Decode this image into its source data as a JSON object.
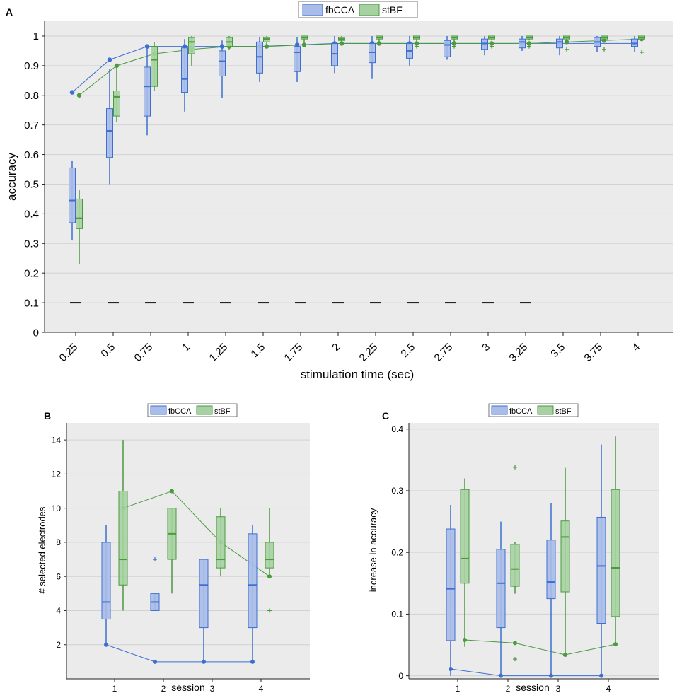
{
  "colors": {
    "fbCCA_fill": "#a9bde8",
    "fbCCA_edge": "#3d6fd0",
    "stBF_fill": "#a7d1a2",
    "stBF_edge": "#4a9a3e",
    "panel_bg": "#ebebeb",
    "grid": "#d2d2d2",
    "chance": "#111111"
  },
  "chart_data": [
    {
      "panel_label": "A",
      "type": "box",
      "xlabel": "stimulation time (sec)",
      "ylabel": "accuracy",
      "ylim": [
        0,
        1.05
      ],
      "grid": true,
      "legend_position": "top-center",
      "legend": [
        "fbCCA",
        "stBF"
      ],
      "categories": [
        "0.25",
        "0.5",
        "0.75",
        "1",
        "1.25",
        "1.5",
        "1.75",
        "2",
        "2.25",
        "2.5",
        "2.75",
        "3",
        "3.25",
        "3.5",
        "3.75",
        "4"
      ],
      "yticks": [
        "0",
        "0.1",
        "0.2",
        "0.3",
        "0.4",
        "0.5",
        "0.6",
        "0.7",
        "0.8",
        "0.9",
        "1"
      ],
      "series": [
        {
          "name": "fbCCA",
          "boxes": [
            {
              "wlo": 0.31,
              "q1": 0.37,
              "med": 0.445,
              "q3": 0.555,
              "whi": 0.58,
              "out": []
            },
            {
              "wlo": 0.5,
              "q1": 0.59,
              "med": 0.68,
              "q3": 0.755,
              "whi": 0.89,
              "out": []
            },
            {
              "wlo": 0.665,
              "q1": 0.73,
              "med": 0.83,
              "q3": 0.895,
              "whi": 0.96,
              "out": []
            },
            {
              "wlo": 0.745,
              "q1": 0.81,
              "med": 0.855,
              "q3": 0.96,
              "whi": 0.99,
              "out": []
            },
            {
              "wlo": 0.79,
              "q1": 0.865,
              "med": 0.915,
              "q3": 0.95,
              "whi": 0.985,
              "out": []
            },
            {
              "wlo": 0.845,
              "q1": 0.875,
              "med": 0.93,
              "q3": 0.98,
              "whi": 0.995,
              "out": []
            },
            {
              "wlo": 0.845,
              "q1": 0.88,
              "med": 0.945,
              "q3": 0.965,
              "whi": 0.995,
              "out": []
            },
            {
              "wlo": 0.875,
              "q1": 0.9,
              "med": 0.94,
              "q3": 0.975,
              "whi": 1.0,
              "out": []
            },
            {
              "wlo": 0.855,
              "q1": 0.91,
              "med": 0.945,
              "q3": 0.975,
              "whi": 1.0,
              "out": []
            },
            {
              "wlo": 0.9,
              "q1": 0.925,
              "med": 0.95,
              "q3": 0.975,
              "whi": 1.0,
              "out": []
            },
            {
              "wlo": 0.92,
              "q1": 0.93,
              "med": 0.97,
              "q3": 0.985,
              "whi": 1.0,
              "out": []
            },
            {
              "wlo": 0.935,
              "q1": 0.955,
              "med": 0.975,
              "q3": 0.99,
              "whi": 1.0,
              "out": []
            },
            {
              "wlo": 0.95,
              "q1": 0.96,
              "med": 0.98,
              "q3": 0.99,
              "whi": 1.0,
              "out": []
            },
            {
              "wlo": 0.935,
              "q1": 0.96,
              "med": 0.98,
              "q3": 0.99,
              "whi": 1.0,
              "out": []
            },
            {
              "wlo": 0.945,
              "q1": 0.965,
              "med": 0.98,
              "q3": 0.995,
              "whi": 1.0,
              "out": []
            },
            {
              "wlo": 0.945,
              "q1": 0.965,
              "med": 0.975,
              "q3": 0.99,
              "whi": 1.0,
              "out": []
            }
          ],
          "mean_line": [
            0.81,
            0.92,
            0.965,
            0.965,
            0.965,
            0.965,
            0.97,
            0.975,
            0.975,
            0.975,
            0.975,
            0.975,
            0.975,
            0.975,
            0.975,
            0.975
          ]
        },
        {
          "name": "stBF",
          "boxes": [
            {
              "wlo": 0.23,
              "q1": 0.35,
              "med": 0.385,
              "q3": 0.45,
              "whi": 0.48,
              "out": []
            },
            {
              "wlo": 0.71,
              "q1": 0.73,
              "med": 0.795,
              "q3": 0.815,
              "whi": 0.9,
              "out": []
            },
            {
              "wlo": 0.815,
              "q1": 0.83,
              "med": 0.92,
              "q3": 0.965,
              "whi": 0.98,
              "out": []
            },
            {
              "wlo": 0.9,
              "q1": 0.94,
              "med": 0.98,
              "q3": 0.995,
              "whi": 1.0,
              "out": []
            },
            {
              "wlo": 0.955,
              "q1": 0.965,
              "med": 0.98,
              "q3": 0.995,
              "whi": 1.0,
              "out": []
            },
            {
              "wlo": 0.965,
              "q1": 0.98,
              "med": 0.99,
              "q3": 0.995,
              "whi": 1.0,
              "out": []
            },
            {
              "wlo": 0.975,
              "q1": 0.99,
              "med": 0.995,
              "q3": 1.0,
              "whi": 1.0,
              "out": []
            },
            {
              "wlo": 0.975,
              "q1": 0.985,
              "med": 0.99,
              "q3": 0.995,
              "whi": 1.0,
              "out": []
            },
            {
              "wlo": 0.975,
              "q1": 0.99,
              "med": 0.995,
              "q3": 1.0,
              "whi": 1.0,
              "out": []
            },
            {
              "wlo": 0.98,
              "q1": 0.99,
              "med": 0.995,
              "q3": 1.0,
              "whi": 1.0,
              "out": [
                0.965
              ]
            },
            {
              "wlo": 0.98,
              "q1": 0.99,
              "med": 0.995,
              "q3": 1.0,
              "whi": 1.0,
              "out": [
                0.965
              ]
            },
            {
              "wlo": 0.985,
              "q1": 0.99,
              "med": 0.995,
              "q3": 1.0,
              "whi": 1.0,
              "out": [
                0.965
              ]
            },
            {
              "wlo": 0.985,
              "q1": 0.99,
              "med": 0.995,
              "q3": 1.0,
              "whi": 1.0,
              "out": [
                0.965
              ]
            },
            {
              "wlo": 0.985,
              "q1": 0.99,
              "med": 0.995,
              "q3": 1.0,
              "whi": 1.0,
              "out": [
                0.955
              ]
            },
            {
              "wlo": 0.985,
              "q1": 0.99,
              "med": 0.995,
              "q3": 1.0,
              "whi": 1.0,
              "out": [
                0.955
              ]
            },
            {
              "wlo": 0.985,
              "q1": 0.99,
              "med": 0.995,
              "q3": 1.0,
              "whi": 1.0,
              "out": [
                0.945
              ]
            }
          ],
          "mean_line": [
            0.8,
            0.9,
            0.94,
            0.955,
            0.965,
            0.965,
            0.97,
            0.975,
            0.975,
            0.975,
            0.975,
            0.975,
            0.975,
            0.98,
            0.985,
            0.99
          ]
        }
      ],
      "chance_level": 0.1,
      "chance_count": 13
    },
    {
      "panel_label": "B",
      "type": "box",
      "xlabel": "session",
      "ylabel": "# selected electrodes",
      "ylim": [
        0,
        15
      ],
      "grid": true,
      "legend_position": "top-center",
      "legend": [
        "fbCCA",
        "stBF"
      ],
      "categories": [
        "1",
        "2",
        "3",
        "4"
      ],
      "yticks": [
        "2",
        "4",
        "6",
        "8",
        "10",
        "12",
        "14"
      ],
      "series": [
        {
          "name": "fbCCA",
          "boxes": [
            {
              "wlo": 2,
              "q1": 3.5,
              "med": 4.5,
              "q3": 8,
              "whi": 9,
              "out": []
            },
            {
              "wlo": 4,
              "q1": 4,
              "med": 4.5,
              "q3": 5,
              "whi": 5,
              "out": [
                7
              ]
            },
            {
              "wlo": 1,
              "q1": 3,
              "med": 5.5,
              "q3": 7,
              "whi": 7,
              "out": []
            },
            {
              "wlo": 1,
              "q1": 3,
              "med": 5.5,
              "q3": 8.5,
              "whi": 9,
              "out": []
            }
          ],
          "mean_line": [
            2,
            1,
            1,
            1
          ]
        },
        {
          "name": "stBF",
          "boxes": [
            {
              "wlo": 4,
              "q1": 5.5,
              "med": 7,
              "q3": 11,
              "whi": 14,
              "out": []
            },
            {
              "wlo": 5,
              "q1": 7,
              "med": 8.5,
              "q3": 10,
              "whi": 10,
              "out": []
            },
            {
              "wlo": 6,
              "q1": 6.5,
              "med": 7,
              "q3": 9.5,
              "whi": 10,
              "out": []
            },
            {
              "wlo": 6,
              "q1": 6.5,
              "med": 7,
              "q3": 8,
              "whi": 10,
              "out": [
                4
              ]
            }
          ],
          "mean_line": [
            10,
            11,
            8,
            6
          ]
        }
      ]
    },
    {
      "panel_label": "C",
      "type": "box",
      "xlabel": "session",
      "ylabel": "increase in accuracy",
      "ylim": [
        -0.005,
        0.41
      ],
      "grid": true,
      "legend_position": "top-center",
      "legend": [
        "fbCCA",
        "stBF"
      ],
      "categories": [
        "1",
        "2",
        "3",
        "4"
      ],
      "yticks": [
        "0",
        "0.1",
        "0.2",
        "0.3",
        "0.4"
      ],
      "series": [
        {
          "name": "fbCCA",
          "boxes": [
            {
              "wlo": 0,
              "q1": 0.057,
              "med": 0.141,
              "q3": 0.238,
              "whi": 0.277,
              "out": []
            },
            {
              "wlo": 0,
              "q1": 0.078,
              "med": 0.15,
              "q3": 0.205,
              "whi": 0.25,
              "out": []
            },
            {
              "wlo": 0,
              "q1": 0.125,
              "med": 0.152,
              "q3": 0.22,
              "whi": 0.28,
              "out": []
            },
            {
              "wlo": 0,
              "q1": 0.085,
              "med": 0.178,
              "q3": 0.257,
              "whi": 0.375,
              "out": []
            }
          ],
          "mean_line": [
            0.011,
            0,
            0,
            0
          ]
        },
        {
          "name": "stBF",
          "boxes": [
            {
              "wlo": 0.047,
              "q1": 0.15,
              "med": 0.19,
              "q3": 0.302,
              "whi": 0.32,
              "out": []
            },
            {
              "wlo": 0.133,
              "q1": 0.145,
              "med": 0.173,
              "q3": 0.213,
              "whi": 0.217,
              "out": [
                0.338,
                0.027
              ]
            },
            {
              "wlo": 0.035,
              "q1": 0.136,
              "med": 0.225,
              "q3": 0.251,
              "whi": 0.337,
              "out": []
            },
            {
              "wlo": 0.052,
              "q1": 0.096,
              "med": 0.175,
              "q3": 0.302,
              "whi": 0.388,
              "out": []
            }
          ],
          "mean_line": [
            0.058,
            0.053,
            0.034,
            0.051
          ]
        }
      ]
    }
  ]
}
